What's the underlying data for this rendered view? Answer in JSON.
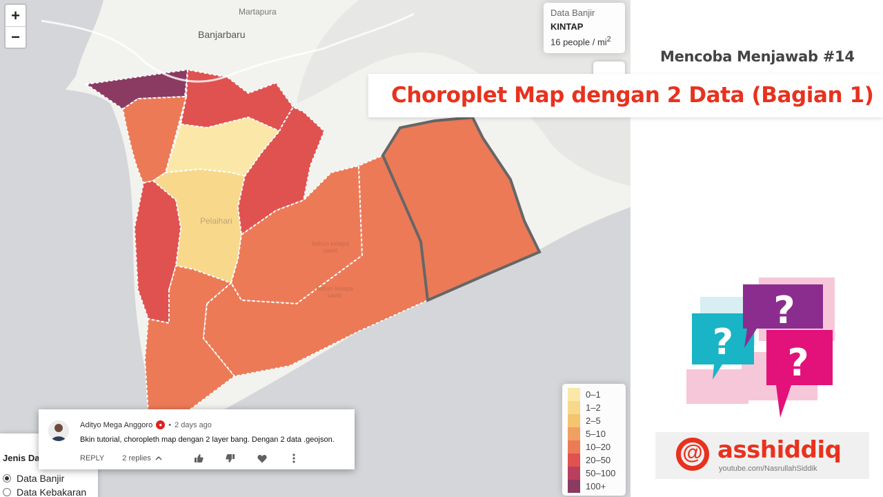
{
  "map": {
    "labels": {
      "martapura": "Martapura",
      "banjarbaru": "Banjarbaru",
      "pelaihari": "Pelaihari",
      "kebun1_line1": "kebun kelapa",
      "kebun1_line2": "sawit",
      "kebun2_line1": "kebun kelapa",
      "kebun2_line2": "sawit"
    },
    "zoom": {
      "in_label": "+",
      "out_label": "−"
    },
    "info": {
      "heading": "Data Banjir",
      "district": "KINTAP",
      "value_text": "16 people / mi",
      "value_sup": "2"
    },
    "legend": [
      {
        "label": "0–1",
        "color": "#fbe8a8"
      },
      {
        "label": "1–2",
        "color": "#f8d98c"
      },
      {
        "label": "2–5",
        "color": "#f5c471"
      },
      {
        "label": "5–10",
        "color": "#f0a062"
      },
      {
        "label": "10–20",
        "color": "#ec7a57"
      },
      {
        "label": "20–50",
        "color": "#df5250"
      },
      {
        "label": "50–100",
        "color": "#b8405e"
      },
      {
        "label": "100+",
        "color": "#8b3a62"
      }
    ],
    "control": {
      "title": "Jenis Data",
      "options": [
        {
          "label": "Data Banjir",
          "checked": true
        },
        {
          "label": "Data Kebakaran",
          "checked": false
        }
      ]
    }
  },
  "comment": {
    "author": "Adityo Mega Anggoro",
    "time": "2 days ago",
    "separator": "•",
    "text": "Bkin tutorial, choropleth map dengan 2 layer bang. Dengan 2 data .geojson.",
    "reply_label": "REPLY",
    "replies_label": "2 replies"
  },
  "header": {
    "series": "Mencoba Menjawab #14",
    "title": "Choroplet Map dengan 2 Data (Bagian 1)"
  },
  "brand": {
    "at_symbol": "@",
    "name": "asshiddiq",
    "url": "youtube.com/NasrullahSiddik"
  },
  "colors": {
    "accent": "#e8321e",
    "sea": "#d4d6d9",
    "land": "#f2f2ef"
  }
}
